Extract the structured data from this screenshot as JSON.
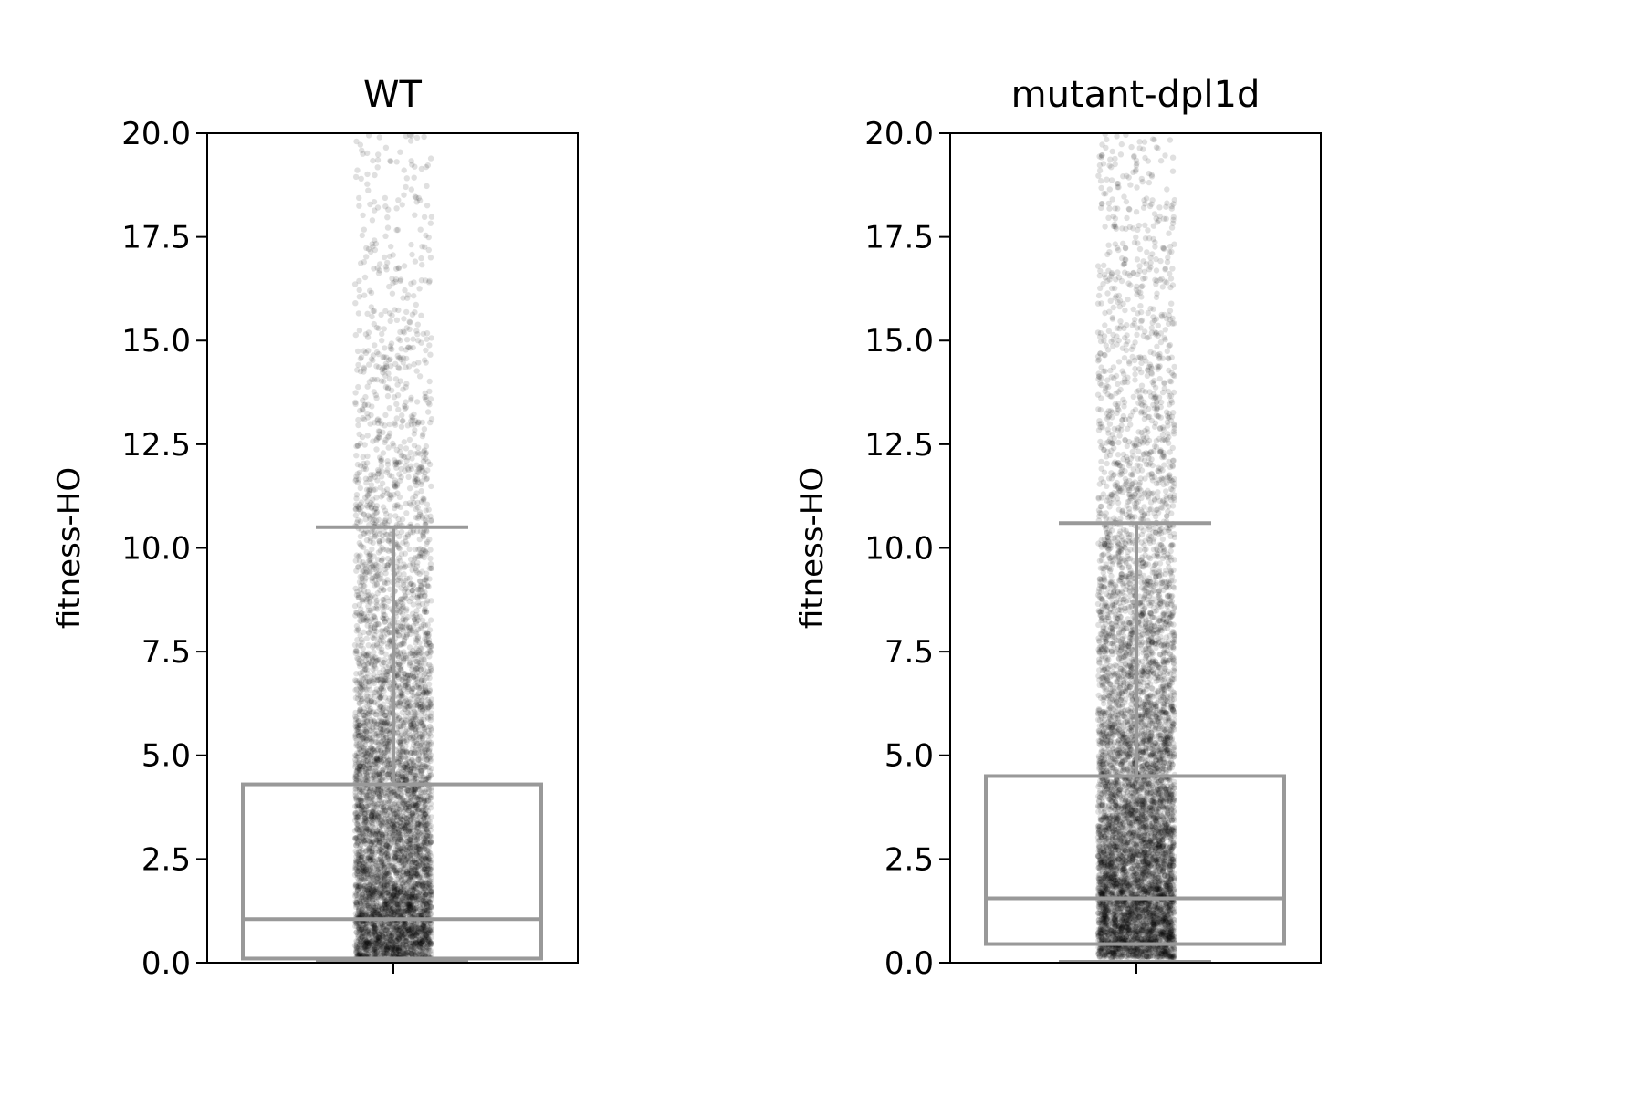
{
  "chart_data": [
    {
      "type": "box",
      "title": "WT",
      "ylabel": "fitness-HO",
      "xlabel": "",
      "ylim": [
        0,
        20
      ],
      "yticks": [
        "0.0",
        "2.5",
        "5.0",
        "7.5",
        "10.0",
        "12.5",
        "15.0",
        "17.5",
        "20.0"
      ],
      "grid": false,
      "box": {
        "whisker_low": 0.0,
        "q1": 0.1,
        "median": 1.05,
        "q3": 4.3,
        "whisker_high": 10.5
      },
      "points": {
        "description_count": 6000,
        "range": [
          0,
          20
        ],
        "color": "#000000"
      },
      "box_color": "#999999"
    },
    {
      "type": "box",
      "title": "mutant-dpl1d",
      "ylabel": "fitness-HO",
      "xlabel": "",
      "ylim": [
        0,
        20
      ],
      "yticks": [
        "0.0",
        "2.5",
        "5.0",
        "7.5",
        "10.0",
        "12.5",
        "15.0",
        "17.5",
        "20.0"
      ],
      "grid": false,
      "box": {
        "whisker_low": 0.0,
        "q1": 0.45,
        "median": 1.55,
        "q3": 4.5,
        "whisker_high": 10.6
      },
      "points": {
        "description_count": 7000,
        "range": [
          0,
          20
        ],
        "color": "#000000"
      },
      "box_color": "#999999"
    }
  ]
}
